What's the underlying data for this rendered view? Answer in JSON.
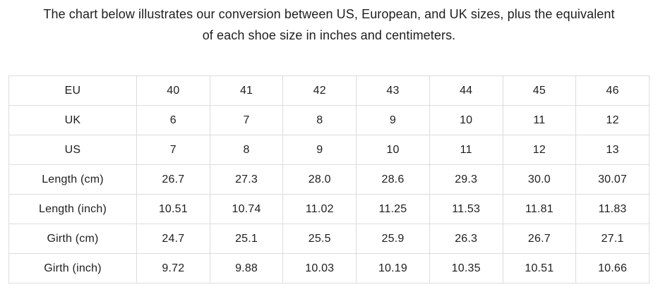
{
  "title": {
    "line1": "The chart below illustrates our conversion between US, European, and UK sizes, plus the equivalent",
    "line2": "of each shoe size in inches and centimeters."
  },
  "colors": {
    "background": "#ffffff",
    "text": "#1e1e1e",
    "table_border": "#dcdcdc"
  },
  "chart_data": {
    "type": "table",
    "title": "The chart below illustrates our conversion between US, European, and UK sizes, plus the equivalent of each shoe size in inches and centimeters.",
    "row_headers": [
      "EU",
      "UK",
      "US",
      "Length (cm)",
      "Length (inch)",
      "Girth (cm)",
      "Girth (inch)"
    ],
    "rows": [
      {
        "label": "EU",
        "values": [
          "40",
          "41",
          "42",
          "43",
          "44",
          "45",
          "46"
        ]
      },
      {
        "label": "UK",
        "values": [
          "6",
          "7",
          "8",
          "9",
          "10",
          "11",
          "12"
        ]
      },
      {
        "label": "US",
        "values": [
          "7",
          "8",
          "9",
          "10",
          "11",
          "12",
          "13"
        ]
      },
      {
        "label": "Length (cm)",
        "values": [
          "26.7",
          "27.3",
          "28.0",
          "28.6",
          "29.3",
          "30.0",
          "30.07"
        ]
      },
      {
        "label": "Length (inch)",
        "values": [
          "10.51",
          "10.74",
          "11.02",
          "11.25",
          "11.53",
          "11.81",
          "11.83"
        ]
      },
      {
        "label": "Girth (cm)",
        "values": [
          "24.7",
          "25.1",
          "25.5",
          "25.9",
          "26.3",
          "26.7",
          "27.1"
        ]
      },
      {
        "label": "Girth (inch)",
        "values": [
          "9.72",
          "9.88",
          "10.03",
          "10.19",
          "10.35",
          "10.51",
          "10.66"
        ]
      }
    ],
    "layout": {
      "columns": 8,
      "grid": true,
      "header_column": "left"
    }
  }
}
